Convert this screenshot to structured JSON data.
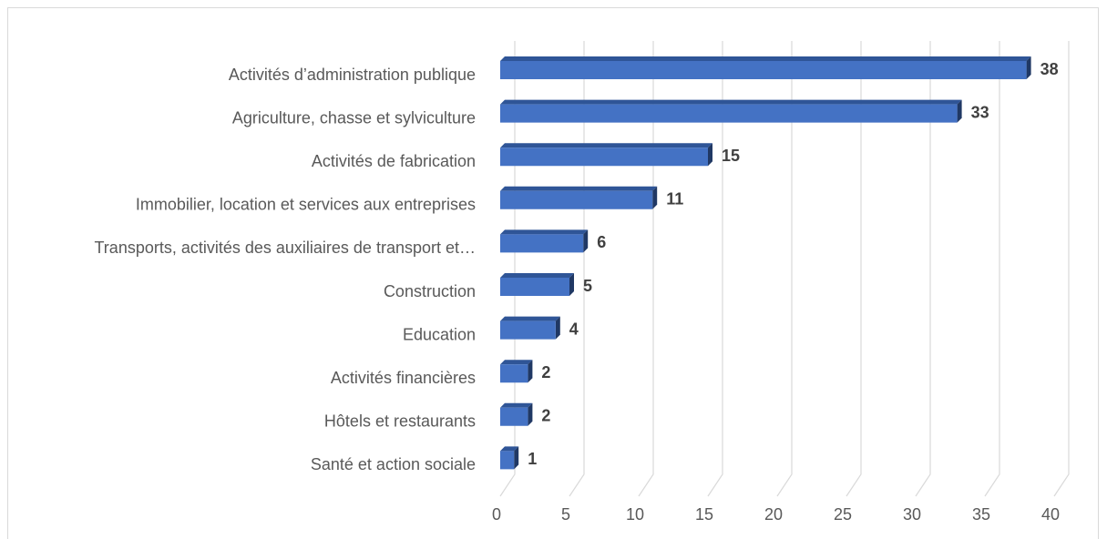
{
  "chart_data": {
    "type": "bar",
    "orientation": "horizontal",
    "categories": [
      "Activités d’administration publique",
      "Agriculture, chasse et sylviculture",
      "Activités de fabrication",
      "Immobilier, location et services aux entreprises",
      "Transports, activités des auxiliaires de transport et…",
      "Construction",
      "Education",
      "Activités financières",
      "Hôtels et restaurants",
      "Santé et action sociale"
    ],
    "values": [
      38,
      33,
      15,
      11,
      6,
      5,
      4,
      2,
      2,
      1
    ],
    "color": "#4472c4",
    "xlim": [
      0,
      40
    ],
    "xticks": [
      0,
      5,
      10,
      15,
      20,
      25,
      30,
      35,
      40
    ],
    "grid": true
  }
}
